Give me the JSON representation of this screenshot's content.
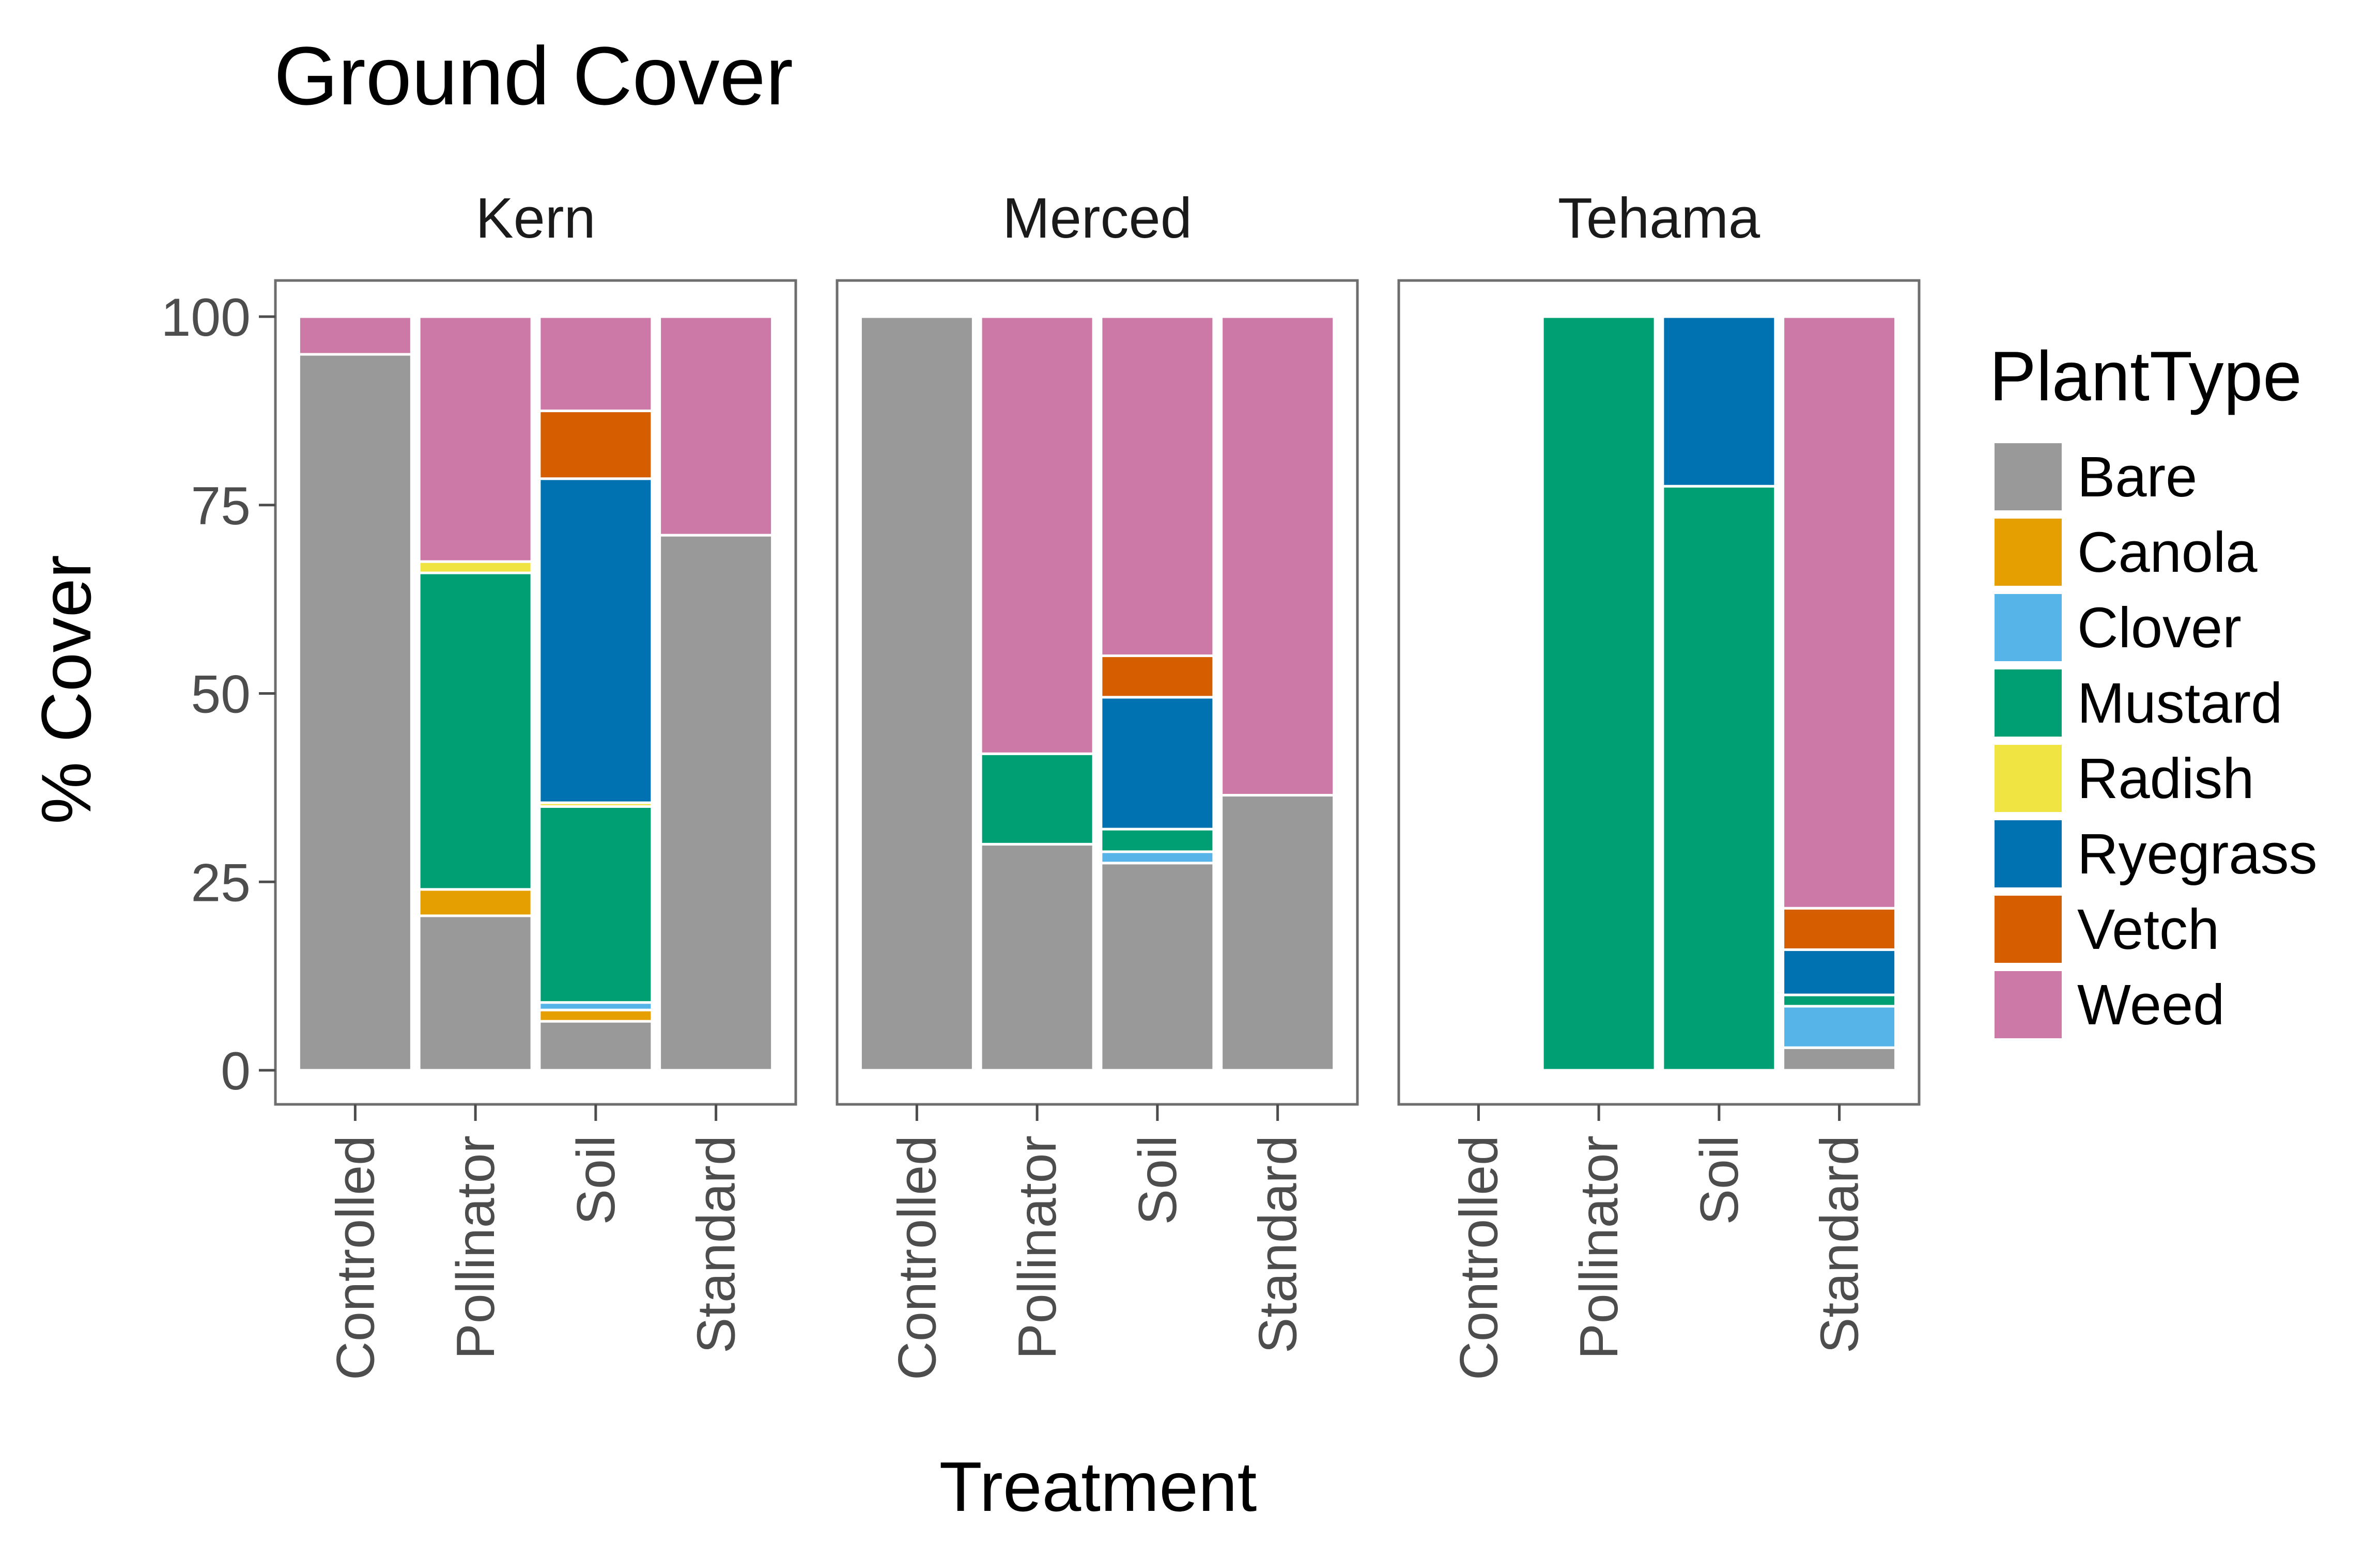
{
  "chart_data": {
    "type": "bar",
    "stacked": true,
    "title": "Ground Cover",
    "xlabel": "Treatment",
    "ylabel": "% Cover",
    "ylim": [
      0,
      100
    ],
    "yticks": [
      0,
      25,
      50,
      75,
      100
    ],
    "grid": false,
    "legend_position": "right",
    "legend_title": "PlantType",
    "categories": [
      "Controlled",
      "Pollinator",
      "Soil",
      "Standard"
    ],
    "series_order": [
      "Bare",
      "Canola",
      "Clover",
      "Mustard",
      "Radish",
      "Ryegrass",
      "Vetch",
      "Weed"
    ],
    "colors": {
      "Bare": "#999999",
      "Canola": "#E69F00",
      "Clover": "#56B4E9",
      "Mustard": "#009E73",
      "Radish": "#F0E442",
      "Ryegrass": "#0072B2",
      "Vetch": "#D55E00",
      "Weed": "#CC79A7"
    },
    "panels": [
      {
        "facet": "Kern",
        "bars": [
          {
            "category": "Controlled",
            "segments": {
              "Bare": 95,
              "Weed": 5
            }
          },
          {
            "category": "Pollinator",
            "segments": {
              "Bare": 20.5,
              "Canola": 3.5,
              "Mustard": 42,
              "Radish": 1.5,
              "Weed": 32.5
            }
          },
          {
            "category": "Soil",
            "segments": {
              "Bare": 6.5,
              "Canola": 1.5,
              "Clover": 1,
              "Mustard": 26,
              "Radish": 0.5,
              "Ryegrass": 43,
              "Vetch": 9,
              "Weed": 12.5
            }
          },
          {
            "category": "Standard",
            "segments": {
              "Bare": 71,
              "Weed": 29
            }
          }
        ]
      },
      {
        "facet": "Merced",
        "bars": [
          {
            "category": "Controlled",
            "segments": {
              "Bare": 100
            }
          },
          {
            "category": "Pollinator",
            "segments": {
              "Bare": 30,
              "Mustard": 12,
              "Weed": 58
            }
          },
          {
            "category": "Soil",
            "segments": {
              "Bare": 27.5,
              "Clover": 1.5,
              "Mustard": 3,
              "Ryegrass": 17.5,
              "Vetch": 5.5,
              "Weed": 45
            }
          },
          {
            "category": "Standard",
            "segments": {
              "Bare": 36.5,
              "Weed": 63.5
            }
          }
        ]
      },
      {
        "facet": "Tehama",
        "bars": [
          {
            "category": "Controlled",
            "segments": {}
          },
          {
            "category": "Pollinator",
            "segments": {
              "Mustard": 100
            }
          },
          {
            "category": "Soil",
            "segments": {
              "Mustard": 77.5,
              "Ryegrass": 22.5
            }
          },
          {
            "category": "Standard",
            "segments": {
              "Bare": 3,
              "Clover": 5.5,
              "Mustard": 1.5,
              "Ryegrass": 6,
              "Vetch": 5.5,
              "Weed": 78.5
            }
          }
        ]
      }
    ]
  }
}
